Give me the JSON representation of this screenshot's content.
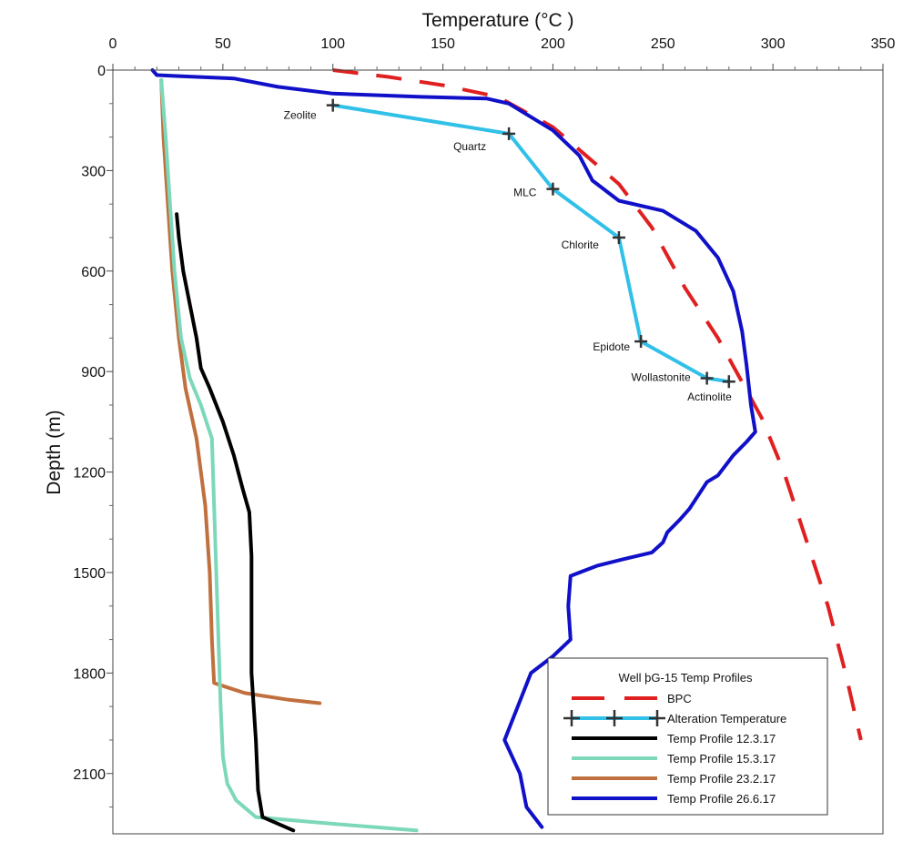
{
  "chart_data": {
    "type": "line",
    "title": "",
    "xlabel": "Temperature (°C )",
    "ylabel": "Depth (m)",
    "x_axis_position": "top",
    "y_axis_inverted": true,
    "xlim": [
      0,
      350
    ],
    "ylim": [
      0,
      2280
    ],
    "x_ticks": [
      0,
      50,
      100,
      150,
      200,
      250,
      300,
      350
    ],
    "y_ticks": [
      0,
      300,
      600,
      900,
      1200,
      1500,
      1800,
      2100
    ],
    "grid": false,
    "legend": {
      "title": "Well  þG-15 Temp Profiles",
      "position": "bottom-right"
    },
    "series": [
      {
        "name": "BPC",
        "color": "#e02020",
        "style": "dashed",
        "points": [
          [
            100,
            0
          ],
          [
            125,
            20
          ],
          [
            150,
            45
          ],
          [
            175,
            80
          ],
          [
            200,
            170
          ],
          [
            215,
            255
          ],
          [
            230,
            340
          ],
          [
            245,
            470
          ],
          [
            260,
            650
          ],
          [
            275,
            800
          ],
          [
            285,
            920
          ],
          [
            295,
            1040
          ],
          [
            305,
            1200
          ],
          [
            315,
            1400
          ],
          [
            325,
            1600
          ],
          [
            333,
            1800
          ],
          [
            340,
            2000
          ]
        ]
      },
      {
        "name": "Alteration Temperature",
        "color": "#30c0e8",
        "style": "solid-markers",
        "labels": [
          "Zeolite",
          "Quartz",
          "MLC",
          "Chlorite",
          "Epidote",
          "Wollastonite",
          "Actinolite"
        ],
        "points": [
          [
            100,
            105
          ],
          [
            180,
            190
          ],
          [
            200,
            355
          ],
          [
            230,
            500
          ],
          [
            240,
            810
          ],
          [
            270,
            920
          ],
          [
            280,
            930
          ]
        ]
      },
      {
        "name": "Temp Profile 12.3.17",
        "color": "#000000",
        "style": "solid",
        "points": [
          [
            29,
            430
          ],
          [
            30,
            500
          ],
          [
            32,
            600
          ],
          [
            35,
            700
          ],
          [
            38,
            800
          ],
          [
            40,
            890
          ],
          [
            44,
            950
          ],
          [
            50,
            1050
          ],
          [
            55,
            1150
          ],
          [
            59,
            1250
          ],
          [
            62,
            1320
          ],
          [
            63,
            1450
          ],
          [
            63,
            1600
          ],
          [
            63,
            1800
          ],
          [
            65,
            2000
          ],
          [
            66,
            2150
          ],
          [
            68,
            2230
          ],
          [
            82,
            2270
          ]
        ]
      },
      {
        "name": "Temp Profile 15.3.17",
        "color": "#7dd8bb",
        "style": "solid",
        "points": [
          [
            22,
            30
          ],
          [
            24,
            200
          ],
          [
            26,
            400
          ],
          [
            28,
            600
          ],
          [
            31,
            800
          ],
          [
            35,
            920
          ],
          [
            40,
            1000
          ],
          [
            45,
            1100
          ],
          [
            46,
            1300
          ],
          [
            47,
            1500
          ],
          [
            48,
            1700
          ],
          [
            49,
            1900
          ],
          [
            50,
            2050
          ],
          [
            52,
            2130
          ],
          [
            56,
            2180
          ],
          [
            65,
            2230
          ],
          [
            100,
            2250
          ],
          [
            138,
            2270
          ]
        ]
      },
      {
        "name": "Temp Profile 23.2.17",
        "color": "#c0703e",
        "style": "solid",
        "points": [
          [
            22,
            30
          ],
          [
            23,
            200
          ],
          [
            25,
            400
          ],
          [
            27,
            600
          ],
          [
            30,
            800
          ],
          [
            33,
            950
          ],
          [
            38,
            1100
          ],
          [
            42,
            1300
          ],
          [
            44,
            1500
          ],
          [
            45,
            1700
          ],
          [
            46,
            1830
          ],
          [
            60,
            1860
          ],
          [
            80,
            1880
          ],
          [
            94,
            1890
          ]
        ]
      },
      {
        "name": "Temp Profile 26.6.17",
        "color": "#1010c8",
        "style": "solid",
        "points": [
          [
            18,
            0
          ],
          [
            20,
            15
          ],
          [
            30,
            18
          ],
          [
            55,
            25
          ],
          [
            75,
            50
          ],
          [
            100,
            70
          ],
          [
            140,
            80
          ],
          [
            170,
            85
          ],
          [
            180,
            100
          ],
          [
            200,
            180
          ],
          [
            212,
            255
          ],
          [
            218,
            330
          ],
          [
            230,
            390
          ],
          [
            250,
            420
          ],
          [
            265,
            480
          ],
          [
            275,
            560
          ],
          [
            282,
            660
          ],
          [
            286,
            780
          ],
          [
            288,
            880
          ],
          [
            290,
            1000
          ],
          [
            292,
            1080
          ],
          [
            288,
            1110
          ],
          [
            282,
            1150
          ],
          [
            275,
            1210
          ],
          [
            270,
            1230
          ],
          [
            266,
            1270
          ],
          [
            262,
            1310
          ],
          [
            258,
            1340
          ],
          [
            252,
            1380
          ],
          [
            250,
            1410
          ],
          [
            245,
            1440
          ],
          [
            232,
            1460
          ],
          [
            220,
            1480
          ],
          [
            208,
            1510
          ],
          [
            207,
            1600
          ],
          [
            208,
            1700
          ],
          [
            200,
            1750
          ],
          [
            190,
            1800
          ],
          [
            184,
            1900
          ],
          [
            178,
            2000
          ],
          [
            185,
            2100
          ],
          [
            188,
            2200
          ],
          [
            195,
            2260
          ]
        ]
      }
    ]
  }
}
